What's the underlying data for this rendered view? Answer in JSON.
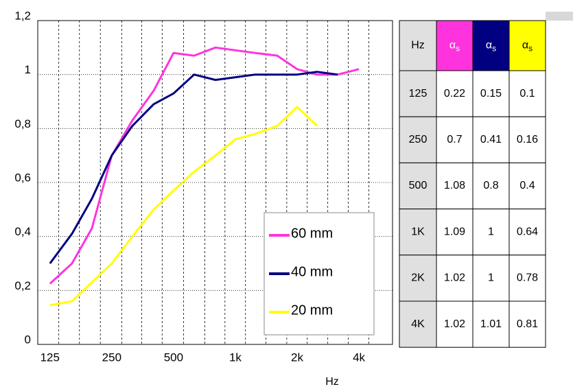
{
  "chart_data": {
    "type": "line",
    "x": [
      125,
      160,
      200,
      250,
      315,
      400,
      500,
      630,
      800,
      1000,
      1250,
      1600,
      2000,
      2500,
      3150,
      4000
    ],
    "xlim": [
      109,
      5830
    ],
    "log_x": true,
    "xticks": [
      {
        "value": 125,
        "label": "125"
      },
      {
        "value": 250,
        "label": "250"
      },
      {
        "value": 500,
        "label": "500"
      },
      {
        "value": 1000,
        "label": "1k"
      },
      {
        "value": 2000,
        "label": "2k"
      },
      {
        "value": 4000,
        "label": "4k"
      }
    ],
    "xgrid": [
      138,
      174,
      220,
      280,
      350,
      440,
      560,
      710,
      890,
      1120,
      1410,
      1780,
      2240,
      2820,
      3550,
      4470
    ],
    "x_label": "Hz",
    "ylim": [
      0,
      1.2
    ],
    "yticks": [
      0,
      {
        "value": 0.2,
        "label": "0,2"
      },
      {
        "value": 0.4,
        "label": "0,4"
      },
      {
        "value": 0.6,
        "label": "0,6"
      },
      {
        "value": 0.8,
        "label": "0,8"
      },
      1,
      {
        "value": 1.2,
        "label": "1,2"
      }
    ],
    "grid": true,
    "series": [
      {
        "name": "60 mm",
        "color": "#ff33dd",
        "values": [
          0.225,
          0.3,
          0.43,
          0.7,
          0.83,
          0.94,
          1.08,
          1.07,
          1.1,
          1.09,
          1.08,
          1.07,
          1.02,
          1.0,
          1.0,
          1.02
        ]
      },
      {
        "name": "40 mm",
        "color": "#000080",
        "values": [
          0.3,
          0.41,
          0.54,
          0.7,
          0.81,
          0.89,
          0.93,
          1.0,
          0.98,
          0.99,
          1.0,
          1.0,
          1.0,
          1.01,
          1.0,
          null
        ]
      },
      {
        "name": "20 mm",
        "color": "#ffff00",
        "values": [
          0.145,
          0.16,
          0.23,
          0.3,
          0.4,
          0.5,
          0.57,
          0.64,
          0.7,
          0.76,
          0.78,
          0.81,
          0.88,
          0.81,
          null,
          null
        ]
      }
    ]
  },
  "table": {
    "header": [
      {
        "text": "Hz"
      },
      {
        "text": "α",
        "sub": "s"
      },
      {
        "text": "α",
        "sub": "s"
      },
      {
        "text": "α",
        "sub": "s"
      }
    ],
    "rows": [
      [
        "125",
        "0.22",
        "0.15",
        "0.1"
      ],
      [
        "250",
        "0.7",
        "0.41",
        "0.16"
      ],
      [
        "500",
        "1.08",
        "0.8",
        "0.4"
      ],
      [
        "1K",
        "1.09",
        "1",
        "0.64"
      ],
      [
        "2K",
        "1.02",
        "1",
        "0.78"
      ],
      [
        "4K",
        "1.02",
        "1.01",
        "0.81"
      ]
    ]
  }
}
